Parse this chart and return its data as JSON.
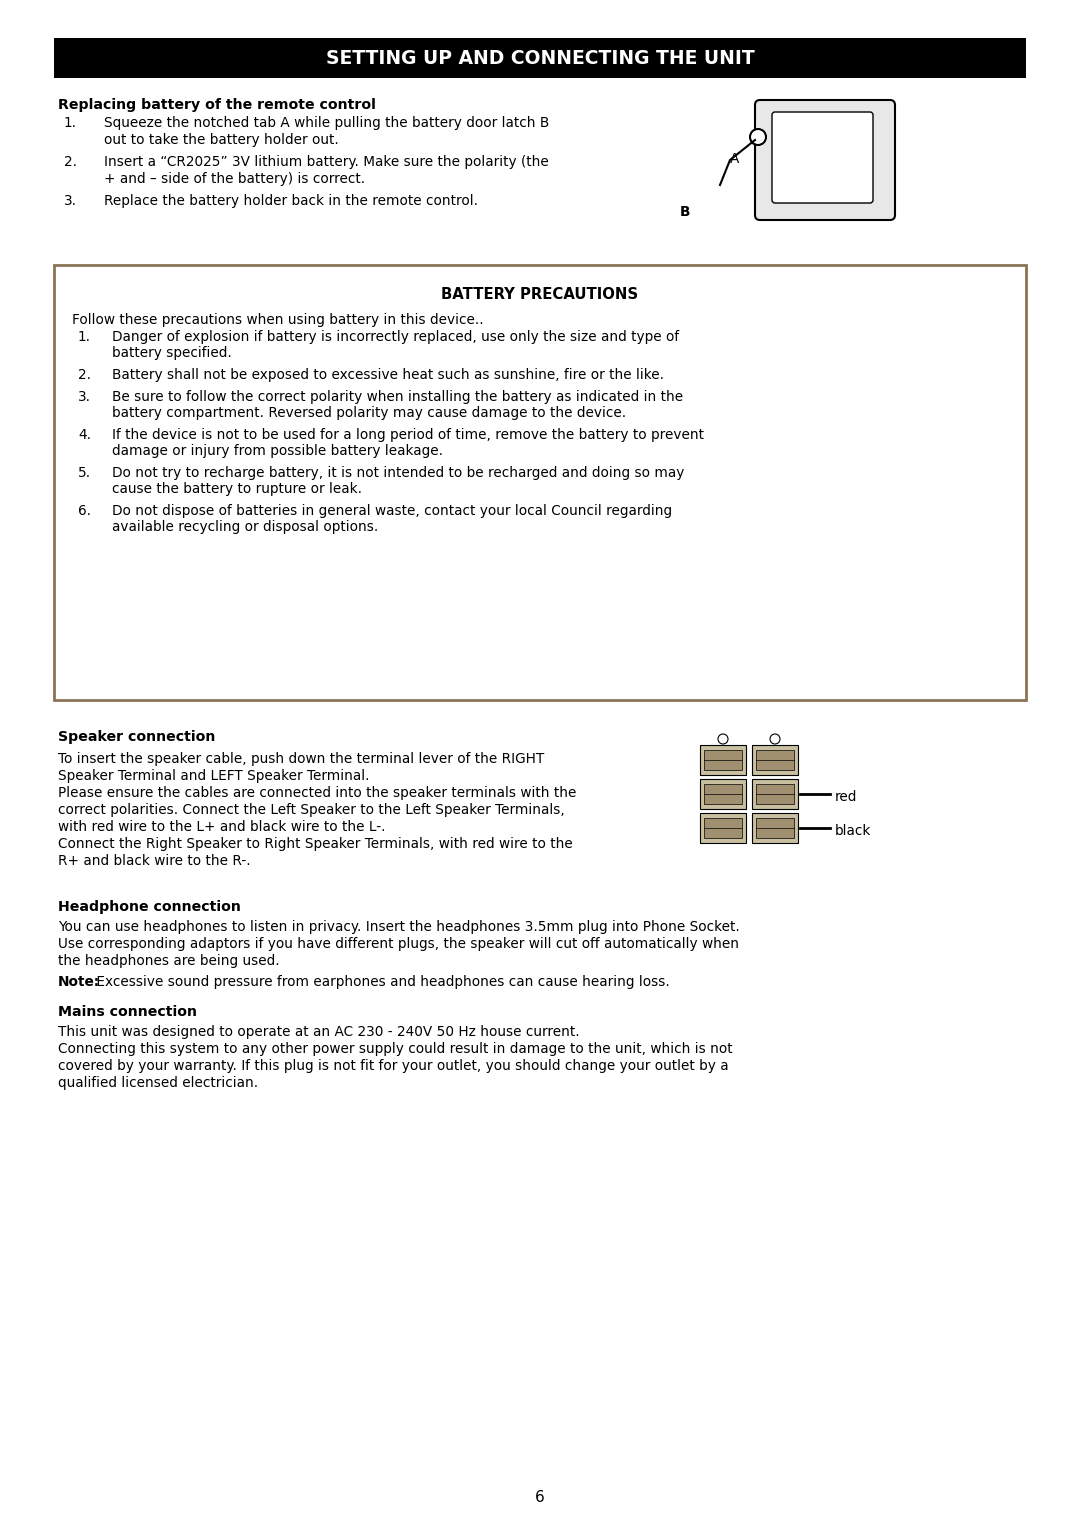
{
  "title": "SETTING UP AND CONNECTING THE UNIT",
  "title_bg": "#000000",
  "title_color": "#ffffff",
  "page_bg": "#ffffff",
  "page_number": "6",
  "body_font": "DejaVu Sans",
  "body_size": 9.8,
  "heading_size": 10.2,
  "title_size": 13.5,
  "replacing_heading": "Replacing battery of the remote control",
  "replacing_items": [
    "Squeeze the notched tab A while pulling the battery door latch B\n    out to take the battery holder out.",
    "Insert a “CR2025” 3V lithium battery. Make sure the polarity (the\n    + and – side of the battery) is correct.",
    "Replace the battery holder back in the remote control."
  ],
  "battery_box_title": "BATTERY PRECAUTIONS",
  "battery_intro": "Follow these precautions when using battery in this device..",
  "battery_items": [
    "Danger of explosion if battery is incorrectly replaced, use only the size and type of battery specified.",
    "Battery shall not be exposed to excessive heat such as sunshine, fire or the like.",
    "Be sure to follow the correct polarity when installing the battery as indicated in the battery compartment. Reversed polarity may cause damage to the device.",
    "If the device is not to be used for a long period of time, remove the battery to prevent damage or injury from possible battery leakage.",
    "Do not try to recharge battery, it is not intended to be recharged and doing so may cause the battery to rupture or leak.",
    "Do not dispose of batteries in general waste, contact your local Council regarding available recycling or disposal options."
  ],
  "speaker_heading": "Speaker connection",
  "speaker_texts": [
    "To insert the speaker cable, push down the terminal lever of the RIGHT",
    "Speaker Terminal and LEFT Speaker Terminal.",
    "Please ensure the cables are connected into the speaker terminals with the",
    "correct polarities. Connect the Left Speaker to the Left Speaker Terminals,",
    "with red wire to the L+ and black wire to the L-.",
    "Connect the Right Speaker to Right Speaker Terminals, with red wire to the",
    "R+ and black wire to the R-."
  ],
  "headphone_heading": "Headphone connection",
  "headphone_line1": "You can use headphones to listen in privacy. Insert the headphones 3.5mm plug into Phone Socket.",
  "headphone_line2": "Use corresponding adaptors if you have different plugs, the speaker will cut off automatically when",
  "headphone_line3": "the headphones are being used.",
  "headphone_note_bold": "Note:",
  "headphone_note_rest": " Excessive sound pressure from earphones and headphones can cause hearing loss.",
  "mains_heading": "Mains connection",
  "mains_line1": "This unit was designed to operate at an AC 230 - 240V 50 Hz house current.",
  "mains_line2": "Connecting this system to any other power supply could result in damage to the unit, which is not",
  "mains_line3": "covered by your warranty. If this plug is not fit for your outlet, you should change your outlet by a",
  "mains_line4": "qualified licensed electrician."
}
